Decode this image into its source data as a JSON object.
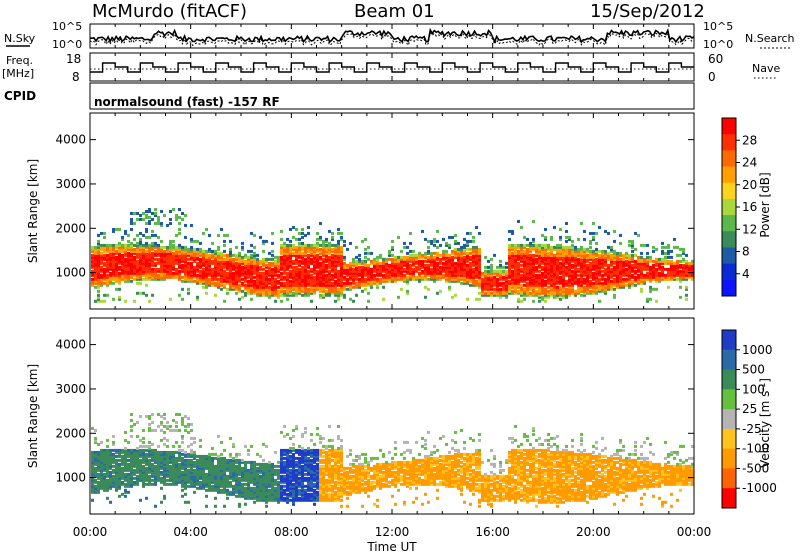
{
  "header": {
    "station": "McMurdo (fitACF)",
    "beam": "Beam 01",
    "date": "15/Sep/2012"
  },
  "panels": {
    "noise": {
      "left_label": "N.Sky",
      "right_label": "N.Search",
      "left_ticks": [
        "10^5",
        "10^0"
      ],
      "right_ticks": [
        "10^5",
        "10^0"
      ]
    },
    "freq": {
      "left_label_1": "Freq.",
      "left_label_2": "[MHz]",
      "left_ticks": [
        "18",
        "8"
      ],
      "right_label": "Nave",
      "right_ticks": [
        "60",
        "0"
      ]
    },
    "cpid": {
      "label": "CPID",
      "text": "normalsound (fast) -157 RF"
    }
  },
  "chart_data": [
    {
      "type": "heatmap",
      "name": "power",
      "ylabel": "Slant Range [km]",
      "xlabel": "",
      "xlim": [
        0,
        24
      ],
      "ylim": [
        180,
        4600
      ],
      "yticks": [
        "1000",
        "2000",
        "3000",
        "4000"
      ],
      "colorbar_label": "Power [dB]",
      "colorbar_ticks": [
        "4",
        "8",
        "12",
        "16",
        "20",
        "24",
        "28"
      ],
      "colorbar_colors": [
        "#0a14ff",
        "#0a2ad6",
        "#1e5aa6",
        "#3a8a5a",
        "#5cb84a",
        "#a8d83c",
        "#ffd21e",
        "#ffa000",
        "#ff6a00",
        "#ff3000",
        "#ff0000"
      ]
    },
    {
      "type": "heatmap",
      "name": "velocity",
      "ylabel": "Slant Range [km]",
      "xlabel": "Time UT",
      "xlim": [
        0,
        24
      ],
      "ylim": [
        180,
        4600
      ],
      "yticks": [
        "1000",
        "2000",
        "3000",
        "4000"
      ],
      "xticks": [
        "00:00",
        "04:00",
        "08:00",
        "12:00",
        "16:00",
        "20:00",
        "00:00"
      ],
      "colorbar_label": "Velocity [m s",
      "colorbar_label_sup": "-1",
      "colorbar_label_end": "]",
      "colorbar_ticks": [
        "1000",
        "500",
        "100",
        "25",
        "-25",
        "-100",
        "-500",
        "-1000"
      ],
      "colorbar_colors": [
        "#1e3cc8",
        "#2a6aa8",
        "#3a8a5a",
        "#66c040",
        "#b4b4b4",
        "#ffc21e",
        "#ff9a00",
        "#ff6400",
        "#ff0000"
      ]
    }
  ]
}
